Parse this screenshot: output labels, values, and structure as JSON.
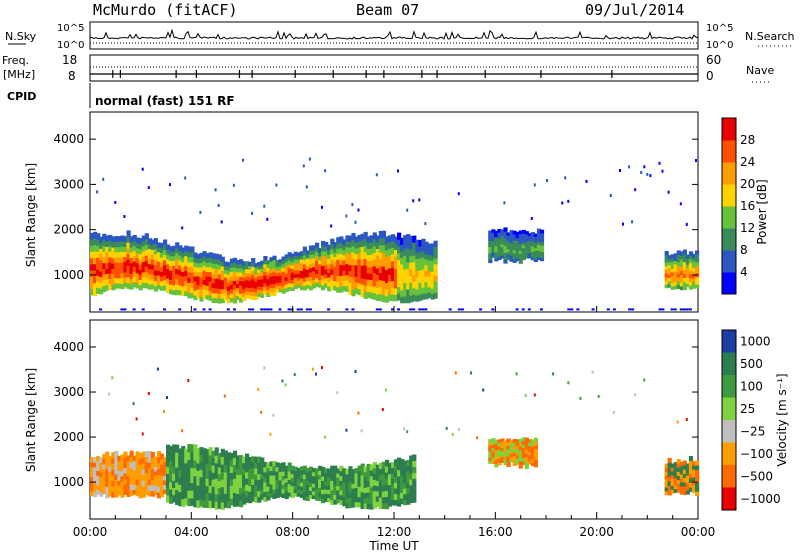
{
  "header": {
    "station": "McMurdo (fitACF)",
    "beam": "Beam 07",
    "date": "09/Jul/2014"
  },
  "noise_panel": {
    "left_label": "N.Sky",
    "right_label": "N.Search",
    "left_ticks": [
      "10^5",
      "10^0"
    ],
    "right_ticks": [
      "10^5",
      "10^0"
    ]
  },
  "freq_panel": {
    "left_label_1": "Freq.",
    "left_label_2": "[MHz]",
    "left_ticks": [
      "18",
      "8"
    ],
    "right_label": "Nave",
    "right_ticks": [
      "60",
      "0"
    ]
  },
  "cpid_panel": {
    "label": "CPID",
    "mode_text": "normal (fast) 151 RF"
  },
  "colors": {
    "power_scale": [
      "#0000ff",
      "#2b58c0",
      "#3a8a5a",
      "#66c23a",
      "#ffd200",
      "#ff9c00",
      "#ff5000",
      "#e60000"
    ],
    "velocity_scale": [
      "#1a3fa0",
      "#2e7d4f",
      "#3f9a3f",
      "#7fd23f",
      "#bfbfbf",
      "#ff9c00",
      "#ff6a00",
      "#e60000"
    ]
  },
  "chart_data": [
    {
      "type": "heatmap",
      "title": "",
      "xlabel": "",
      "ylabel": "Slant Range [km]",
      "xlim": [
        0,
        24
      ],
      "ylim": [
        180,
        4600
      ],
      "yticks": [
        "1000",
        "2000",
        "3000",
        "4000"
      ],
      "colorbar": {
        "label": "Power [dB]",
        "ticks": [
          "4",
          "8",
          "12",
          "16",
          "20",
          "24",
          "28"
        ],
        "range": [
          0,
          30
        ]
      },
      "features": [
        {
          "start_h": 0,
          "end_h": 13.5,
          "range_km": [
            500,
            1900
          ],
          "level": "high"
        },
        {
          "start_h": 15.5,
          "end_h": 17.8,
          "range_km": [
            1200,
            2000
          ],
          "level": "low"
        },
        {
          "start_h": 22.5,
          "end_h": 24,
          "range_km": [
            600,
            1600
          ],
          "level": "medium"
        }
      ]
    },
    {
      "type": "heatmap",
      "title": "",
      "xlabel": "Time UT",
      "ylabel": "Slant Range [km]",
      "xlim": [
        0,
        24
      ],
      "ylim": [
        180,
        4600
      ],
      "xticks": [
        "00:00",
        "04:00",
        "08:00",
        "12:00",
        "16:00",
        "20:00",
        "00:00"
      ],
      "yticks": [
        "1000",
        "2000",
        "3000",
        "4000"
      ],
      "colorbar": {
        "label": "Velocity [m s⁻¹]",
        "ticks": [
          "1000",
          "500",
          "100",
          "25",
          "−25",
          "−100",
          "−500",
          "−1000"
        ]
      },
      "features": [
        {
          "start_h": 0,
          "end_h": 3,
          "range_km": [
            600,
            1600
          ],
          "velocity": "negative"
        },
        {
          "start_h": 3,
          "end_h": 12,
          "range_km": [
            500,
            1800
          ],
          "velocity": "positive"
        },
        {
          "start_h": 15.5,
          "end_h": 17.5,
          "range_km": [
            1200,
            2000
          ],
          "velocity": "negative"
        },
        {
          "start_h": 22.5,
          "end_h": 24,
          "range_km": [
            600,
            1600
          ],
          "velocity": "negative"
        }
      ]
    }
  ]
}
